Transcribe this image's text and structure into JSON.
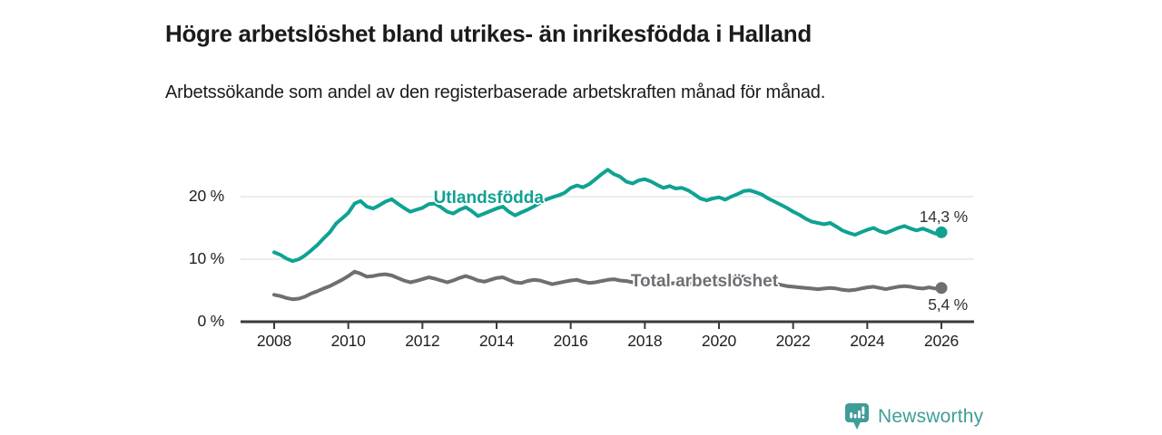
{
  "header": {
    "title": "Högre arbetslöshet bland utrikes- än inrikesfödda i Halland",
    "subtitle": "Arbetssökande som andel av den registerbaserade arbetskraften månad för månad."
  },
  "branding": {
    "logo_text": "Newsworthy",
    "logo_icon": "bar-chart-speech-bubble-icon",
    "brand_color": "#3f9d98"
  },
  "colors": {
    "accent_teal": "#0fa292",
    "series_gray": "#6e6e73",
    "gridline": "#d9d9d9",
    "axis": "#3a3a3a",
    "text": "#1b1b1b"
  },
  "chart_data": {
    "type": "line",
    "title": "Högre arbetslöshet bland utrikes- än inrikesfödda i Halland",
    "subtitle": "Arbetssökande som andel av den registerbaserade arbetskraften månad för månad.",
    "x_unit": "decimal year (monthly observations)",
    "xlabel": "",
    "ylabel": "",
    "xlim": [
      2008,
      2026
    ],
    "ylim": [
      0,
      26
    ],
    "grid": "horizontal",
    "legend_position": "inline-labels",
    "yticks": [
      {
        "value": 0,
        "label": "0 %"
      },
      {
        "value": 10,
        "label": "10 %"
      },
      {
        "value": 20,
        "label": "20 %"
      }
    ],
    "xticks": [
      {
        "value": 2008,
        "label": "2008"
      },
      {
        "value": 2010,
        "label": "2010"
      },
      {
        "value": 2012,
        "label": "2012"
      },
      {
        "value": 2014,
        "label": "2014"
      },
      {
        "value": 2016,
        "label": "2016"
      },
      {
        "value": 2018,
        "label": "2018"
      },
      {
        "value": 2020,
        "label": "2020"
      },
      {
        "value": 2022,
        "label": "2022"
      },
      {
        "value": 2024,
        "label": "2024"
      },
      {
        "value": 2026,
        "label": "2026"
      }
    ],
    "series": [
      {
        "name": "Utlandsfödda",
        "color": "#0fa292",
        "end_value": 14.3,
        "end_label": "14,3 %",
        "end_label_side": "above",
        "label_anchor": {
          "year": 2012.3,
          "value": 19.5
        },
        "points": [
          [
            2008.0,
            11.1
          ],
          [
            2008.17,
            10.7
          ],
          [
            2008.33,
            10.1
          ],
          [
            2008.5,
            9.7
          ],
          [
            2008.67,
            10.0
          ],
          [
            2008.83,
            10.6
          ],
          [
            2009.0,
            11.4
          ],
          [
            2009.17,
            12.3
          ],
          [
            2009.33,
            13.3
          ],
          [
            2009.5,
            14.3
          ],
          [
            2009.67,
            15.7
          ],
          [
            2009.83,
            16.5
          ],
          [
            2010.0,
            17.4
          ],
          [
            2010.17,
            18.9
          ],
          [
            2010.33,
            19.3
          ],
          [
            2010.5,
            18.4
          ],
          [
            2010.67,
            18.1
          ],
          [
            2010.83,
            18.6
          ],
          [
            2011.0,
            19.2
          ],
          [
            2011.17,
            19.6
          ],
          [
            2011.33,
            18.9
          ],
          [
            2011.5,
            18.2
          ],
          [
            2011.67,
            17.6
          ],
          [
            2011.83,
            17.9
          ],
          [
            2012.0,
            18.2
          ],
          [
            2012.17,
            18.8
          ],
          [
            2012.33,
            18.9
          ],
          [
            2012.5,
            18.3
          ],
          [
            2012.67,
            17.6
          ],
          [
            2012.83,
            17.3
          ],
          [
            2013.0,
            17.9
          ],
          [
            2013.17,
            18.3
          ],
          [
            2013.33,
            17.7
          ],
          [
            2013.5,
            16.9
          ],
          [
            2013.67,
            17.3
          ],
          [
            2013.83,
            17.7
          ],
          [
            2014.0,
            18.1
          ],
          [
            2014.17,
            18.4
          ],
          [
            2014.33,
            17.6
          ],
          [
            2014.5,
            17.0
          ],
          [
            2014.67,
            17.5
          ],
          [
            2014.83,
            17.9
          ],
          [
            2015.0,
            18.4
          ],
          [
            2015.17,
            19.0
          ],
          [
            2015.33,
            19.5
          ],
          [
            2015.5,
            19.9
          ],
          [
            2015.67,
            20.2
          ],
          [
            2015.83,
            20.6
          ],
          [
            2016.0,
            21.4
          ],
          [
            2016.17,
            21.8
          ],
          [
            2016.33,
            21.5
          ],
          [
            2016.5,
            22.0
          ],
          [
            2016.67,
            22.8
          ],
          [
            2016.83,
            23.6
          ],
          [
            2017.0,
            24.3
          ],
          [
            2017.17,
            23.6
          ],
          [
            2017.33,
            23.2
          ],
          [
            2017.5,
            22.4
          ],
          [
            2017.67,
            22.1
          ],
          [
            2017.83,
            22.6
          ],
          [
            2018.0,
            22.8
          ],
          [
            2018.17,
            22.4
          ],
          [
            2018.33,
            21.9
          ],
          [
            2018.5,
            21.4
          ],
          [
            2018.67,
            21.7
          ],
          [
            2018.83,
            21.3
          ],
          [
            2019.0,
            21.4
          ],
          [
            2019.17,
            21.0
          ],
          [
            2019.33,
            20.4
          ],
          [
            2019.5,
            19.7
          ],
          [
            2019.67,
            19.4
          ],
          [
            2019.83,
            19.7
          ],
          [
            2020.0,
            19.9
          ],
          [
            2020.17,
            19.5
          ],
          [
            2020.33,
            20.0
          ],
          [
            2020.5,
            20.4
          ],
          [
            2020.67,
            20.9
          ],
          [
            2020.83,
            21.0
          ],
          [
            2021.0,
            20.7
          ],
          [
            2021.17,
            20.3
          ],
          [
            2021.33,
            19.7
          ],
          [
            2021.5,
            19.2
          ],
          [
            2021.67,
            18.7
          ],
          [
            2021.83,
            18.2
          ],
          [
            2022.0,
            17.6
          ],
          [
            2022.17,
            17.1
          ],
          [
            2022.33,
            16.5
          ],
          [
            2022.5,
            16.0
          ],
          [
            2022.67,
            15.8
          ],
          [
            2022.83,
            15.6
          ],
          [
            2023.0,
            15.8
          ],
          [
            2023.17,
            15.2
          ],
          [
            2023.33,
            14.6
          ],
          [
            2023.5,
            14.2
          ],
          [
            2023.67,
            13.9
          ],
          [
            2023.83,
            14.3
          ],
          [
            2024.0,
            14.7
          ],
          [
            2024.17,
            15.0
          ],
          [
            2024.33,
            14.5
          ],
          [
            2024.5,
            14.2
          ],
          [
            2024.67,
            14.6
          ],
          [
            2024.83,
            15.0
          ],
          [
            2025.0,
            15.3
          ],
          [
            2025.17,
            14.9
          ],
          [
            2025.33,
            14.6
          ],
          [
            2025.5,
            14.9
          ],
          [
            2025.67,
            14.5
          ],
          [
            2025.83,
            14.1
          ],
          [
            2026.0,
            14.3
          ]
        ]
      },
      {
        "name": "Total arbetslöshet",
        "color": "#6e6e73",
        "end_value": 5.4,
        "end_label": "5,4 %",
        "end_label_side": "below",
        "label_anchor": {
          "year": 2017.62,
          "value": 6.2
        },
        "points": [
          [
            2008.0,
            4.3
          ],
          [
            2008.17,
            4.1
          ],
          [
            2008.33,
            3.8
          ],
          [
            2008.5,
            3.6
          ],
          [
            2008.67,
            3.7
          ],
          [
            2008.83,
            4.0
          ],
          [
            2009.0,
            4.5
          ],
          [
            2009.17,
            4.9
          ],
          [
            2009.33,
            5.3
          ],
          [
            2009.5,
            5.7
          ],
          [
            2009.67,
            6.2
          ],
          [
            2009.83,
            6.7
          ],
          [
            2010.0,
            7.3
          ],
          [
            2010.17,
            8.0
          ],
          [
            2010.33,
            7.7
          ],
          [
            2010.5,
            7.2
          ],
          [
            2010.67,
            7.3
          ],
          [
            2010.83,
            7.5
          ],
          [
            2011.0,
            7.6
          ],
          [
            2011.17,
            7.4
          ],
          [
            2011.33,
            7.0
          ],
          [
            2011.5,
            6.6
          ],
          [
            2011.67,
            6.3
          ],
          [
            2011.83,
            6.5
          ],
          [
            2012.0,
            6.8
          ],
          [
            2012.17,
            7.1
          ],
          [
            2012.33,
            6.9
          ],
          [
            2012.5,
            6.6
          ],
          [
            2012.67,
            6.3
          ],
          [
            2012.83,
            6.6
          ],
          [
            2013.0,
            7.0
          ],
          [
            2013.17,
            7.3
          ],
          [
            2013.33,
            7.0
          ],
          [
            2013.5,
            6.6
          ],
          [
            2013.67,
            6.4
          ],
          [
            2013.83,
            6.7
          ],
          [
            2014.0,
            7.0
          ],
          [
            2014.17,
            7.1
          ],
          [
            2014.33,
            6.7
          ],
          [
            2014.5,
            6.3
          ],
          [
            2014.67,
            6.2
          ],
          [
            2014.83,
            6.5
          ],
          [
            2015.0,
            6.7
          ],
          [
            2015.17,
            6.6
          ],
          [
            2015.33,
            6.3
          ],
          [
            2015.5,
            6.0
          ],
          [
            2015.67,
            6.2
          ],
          [
            2015.83,
            6.4
          ],
          [
            2016.0,
            6.6
          ],
          [
            2016.17,
            6.7
          ],
          [
            2016.33,
            6.4
          ],
          [
            2016.5,
            6.2
          ],
          [
            2016.67,
            6.3
          ],
          [
            2016.83,
            6.5
          ],
          [
            2017.0,
            6.7
          ],
          [
            2017.17,
            6.8
          ],
          [
            2017.33,
            6.6
          ],
          [
            2017.5,
            6.5
          ],
          [
            2017.67,
            6.3
          ],
          [
            2017.83,
            6.4
          ],
          [
            2018.0,
            6.5
          ],
          [
            2018.17,
            6.4
          ],
          [
            2018.33,
            6.2
          ],
          [
            2018.5,
            6.0
          ],
          [
            2018.67,
            6.1
          ],
          [
            2018.83,
            6.2
          ],
          [
            2019.0,
            6.3
          ],
          [
            2019.17,
            6.2
          ],
          [
            2019.33,
            6.1
          ],
          [
            2019.5,
            6.0
          ],
          [
            2019.67,
            6.1
          ],
          [
            2019.83,
            6.2
          ],
          [
            2020.0,
            6.4
          ],
          [
            2020.17,
            6.8
          ],
          [
            2020.33,
            7.2
          ],
          [
            2020.5,
            7.4
          ],
          [
            2020.67,
            7.2
          ],
          [
            2020.83,
            7.0
          ],
          [
            2021.0,
            6.9
          ],
          [
            2021.17,
            6.7
          ],
          [
            2021.33,
            6.4
          ],
          [
            2021.5,
            6.1
          ],
          [
            2021.67,
            5.9
          ],
          [
            2021.83,
            5.7
          ],
          [
            2022.0,
            5.6
          ],
          [
            2022.17,
            5.5
          ],
          [
            2022.33,
            5.4
          ],
          [
            2022.5,
            5.3
          ],
          [
            2022.67,
            5.2
          ],
          [
            2022.83,
            5.3
          ],
          [
            2023.0,
            5.4
          ],
          [
            2023.17,
            5.3
          ],
          [
            2023.33,
            5.1
          ],
          [
            2023.5,
            5.0
          ],
          [
            2023.67,
            5.1
          ],
          [
            2023.83,
            5.3
          ],
          [
            2024.0,
            5.5
          ],
          [
            2024.17,
            5.6
          ],
          [
            2024.33,
            5.4
          ],
          [
            2024.5,
            5.2
          ],
          [
            2024.67,
            5.4
          ],
          [
            2024.83,
            5.6
          ],
          [
            2025.0,
            5.7
          ],
          [
            2025.17,
            5.6
          ],
          [
            2025.33,
            5.4
          ],
          [
            2025.5,
            5.3
          ],
          [
            2025.67,
            5.5
          ],
          [
            2025.83,
            5.3
          ],
          [
            2026.0,
            5.4
          ]
        ]
      }
    ]
  }
}
